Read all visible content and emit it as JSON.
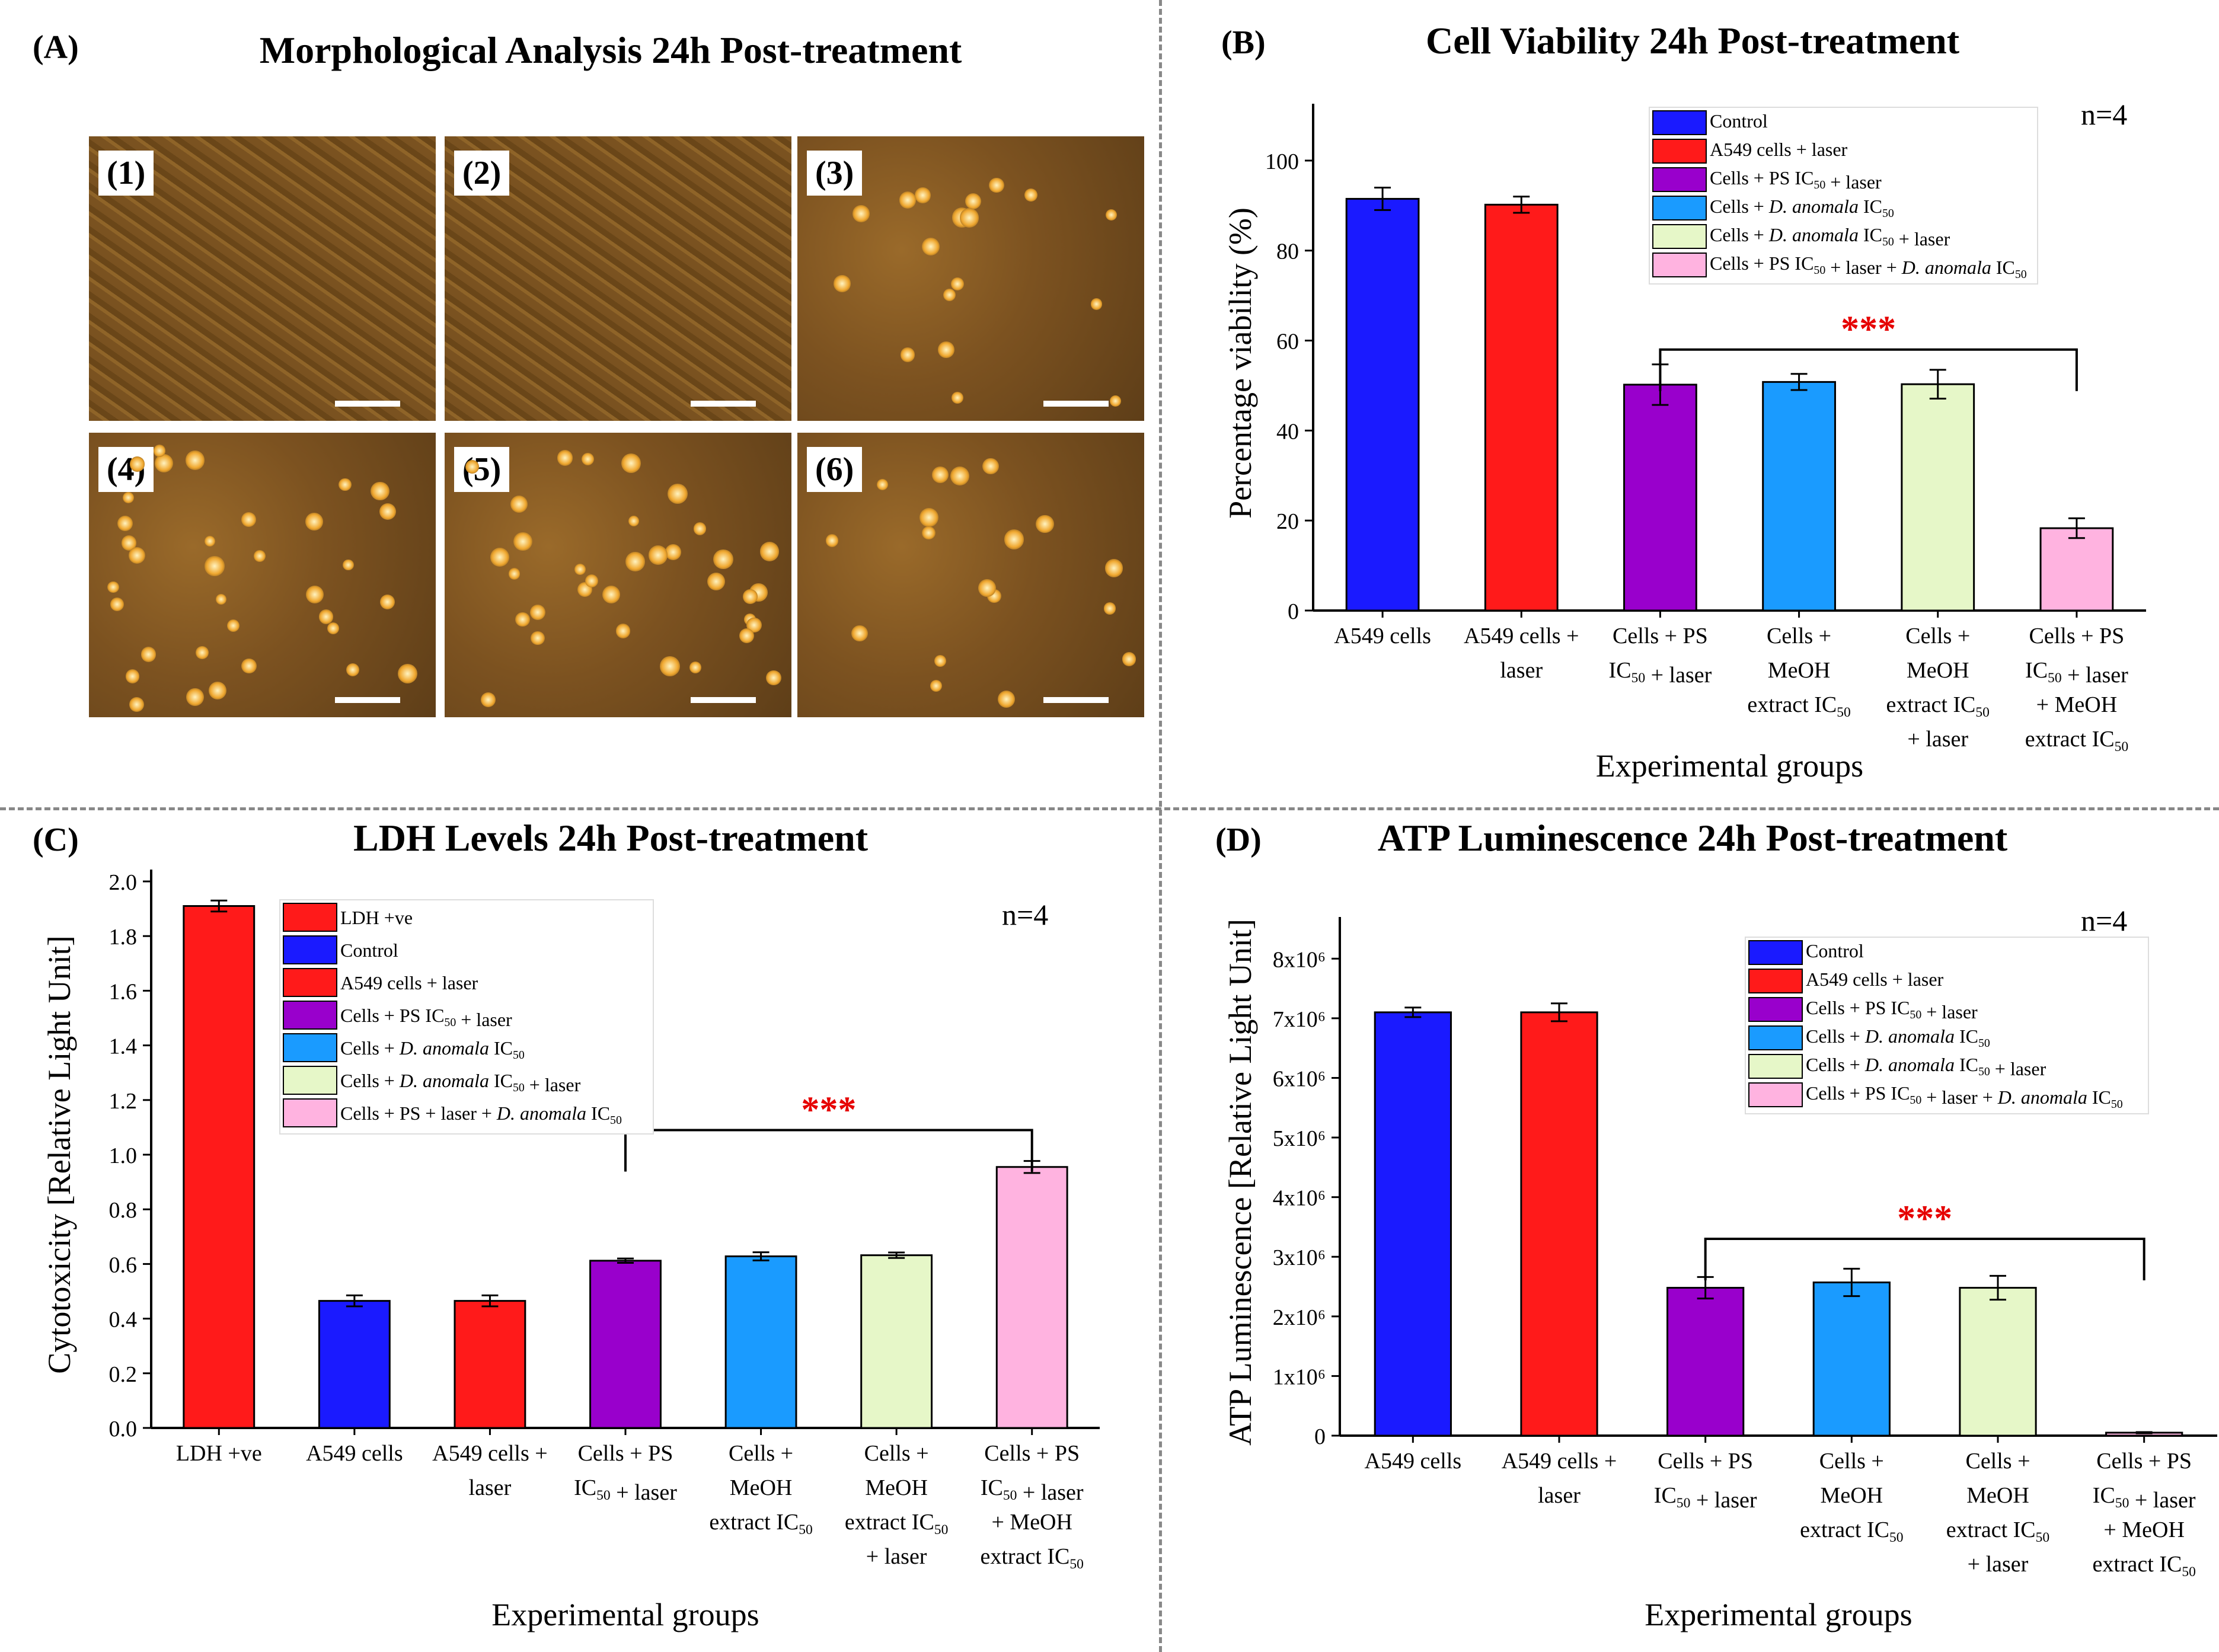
{
  "panel_a": {
    "letter": "(A)",
    "title": "Morphological Analysis 24h Post-treatment",
    "images": [
      {
        "label": "(1)",
        "density": "confluent"
      },
      {
        "label": "(2)",
        "density": "confluent"
      },
      {
        "label": "(3)",
        "density": "sparse"
      },
      {
        "label": "(4)",
        "density": "medium"
      },
      {
        "label": "(5)",
        "density": "medium"
      },
      {
        "label": "(6)",
        "density": "sparse"
      }
    ]
  },
  "colors": {
    "red": "#ff1a1a",
    "blue": "#1a1aff",
    "purple": "#9900cc",
    "cyan": "#1a9bff",
    "lightgreen": "#e6f7c8",
    "pink": "#ffb3e0",
    "significance": "#e60000"
  },
  "chart_data": [
    {
      "panel": "B",
      "letter": "(B)",
      "type": "bar",
      "title": "Cell Viability 24h Post-treatment",
      "xlabel": "Experimental groups",
      "ylabel": "Percentage viability (%)",
      "ylim": [
        0,
        110
      ],
      "yticks": [
        0,
        20,
        40,
        60,
        80,
        100
      ],
      "n_label": "n=4",
      "significance": "***",
      "categories": [
        [
          "A549 cells"
        ],
        [
          "A549 cells +",
          "laser"
        ],
        [
          "Cells + PS",
          "IC50 + laser"
        ],
        [
          "Cells +",
          "MeOH",
          "extract IC50"
        ],
        [
          "Cells +",
          "MeOH",
          "extract IC50",
          "+ laser"
        ],
        [
          "Cells + PS",
          "IC50 + laser",
          "+ MeOH",
          "extract IC50"
        ]
      ],
      "values": [
        91.5,
        90.2,
        50.2,
        50.8,
        50.3,
        18.3
      ],
      "errors": [
        2.5,
        1.8,
        4.5,
        1.8,
        3.2,
        2.2
      ],
      "bar_colors": [
        "blue",
        "red",
        "purple",
        "cyan",
        "lightgreen",
        "pink"
      ],
      "legend": [
        {
          "color": "blue",
          "label": "Control"
        },
        {
          "color": "red",
          "label": "A549 cells + laser"
        },
        {
          "color": "purple",
          "label": "Cells + PS IC50 + laser"
        },
        {
          "color": "cyan",
          "label": "Cells + D. anomala IC50"
        },
        {
          "color": "lightgreen",
          "label": "Cells + D. anomala IC50 + laser"
        },
        {
          "color": "pink",
          "label": "Cells + PS IC50 + laser + D. anomala IC50"
        }
      ],
      "bracket": {
        "from": 2,
        "to": 5
      }
    },
    {
      "panel": "C",
      "letter": "(C)",
      "type": "bar",
      "title": "LDH Levels 24h Post-treatment",
      "xlabel": "Experimental groups",
      "ylabel": "Cytotoxicity [Relative Light Unit]",
      "ylim": [
        0,
        2.0
      ],
      "yticks": [
        0.0,
        0.2,
        0.4,
        0.6,
        0.8,
        1.0,
        1.2,
        1.4,
        1.6,
        1.8,
        2.0
      ],
      "n_label": "n=4",
      "significance": "***",
      "categories": [
        [
          "LDH +ve"
        ],
        [
          "A549 cells"
        ],
        [
          "A549 cells +",
          "laser"
        ],
        [
          "Cells + PS",
          "IC50 + laser"
        ],
        [
          "Cells +",
          "MeOH",
          "extract IC50"
        ],
        [
          "Cells +",
          "MeOH",
          "extract IC50",
          "+ laser"
        ],
        [
          "Cells + PS",
          "IC50 + laser",
          "+ MeOH",
          "extract IC50"
        ]
      ],
      "values": [
        1.91,
        0.465,
        0.465,
        0.612,
        0.628,
        0.632,
        0.955
      ],
      "errors": [
        0.02,
        0.02,
        0.02,
        0.008,
        0.015,
        0.01,
        0.022
      ],
      "bar_colors": [
        "red",
        "blue",
        "red",
        "purple",
        "cyan",
        "lightgreen",
        "pink"
      ],
      "legend": [
        {
          "color": "red",
          "label": "LDH +ve"
        },
        {
          "color": "blue",
          "label": "Control"
        },
        {
          "color": "red",
          "label": "A549 cells + laser"
        },
        {
          "color": "purple",
          "label": "Cells + PS IC50 + laser"
        },
        {
          "color": "cyan",
          "label": "Cells + D. anomala IC50"
        },
        {
          "color": "lightgreen",
          "label": "Cells + D. anomala IC50 + laser"
        },
        {
          "color": "pink",
          "label": "Cells + PS + laser + D. anomala IC50"
        }
      ],
      "bracket": {
        "from": 3,
        "to": 6
      }
    },
    {
      "panel": "D",
      "letter": "(D)",
      "type": "bar",
      "title": "ATP Luminescence 24h Post-treatment",
      "xlabel": "Experimental groups",
      "ylabel": "ATP Luminescence [Relative Light Unit]",
      "ylim": [
        0,
        8500000
      ],
      "yticks": [
        0,
        1000000,
        2000000,
        3000000,
        4000000,
        5000000,
        6000000,
        7000000,
        8000000
      ],
      "ytick_labels": [
        "0",
        "1x10⁶",
        "2x10⁶",
        "3x10⁶",
        "4x10⁶",
        "5x10⁶",
        "6x10⁶",
        "7x10⁶",
        "8x10⁶"
      ],
      "n_label": "n=4",
      "significance": "***",
      "categories": [
        [
          "A549 cells"
        ],
        [
          "A549 cells +",
          "laser"
        ],
        [
          "Cells + PS",
          "IC50 + laser"
        ],
        [
          "Cells +",
          "MeOH",
          "extract IC50"
        ],
        [
          "Cells +",
          "MeOH",
          "extract IC50",
          "+ laser"
        ],
        [
          "Cells + PS",
          "IC50 + laser",
          "+ MeOH",
          "extract IC50"
        ]
      ],
      "values": [
        7100000,
        7100000,
        2480000,
        2570000,
        2480000,
        50000
      ],
      "errors": [
        80000,
        150000,
        180000,
        230000,
        200000,
        10000
      ],
      "bar_colors": [
        "blue",
        "red",
        "purple",
        "cyan",
        "lightgreen",
        "pink"
      ],
      "legend": [
        {
          "color": "blue",
          "label": "Control"
        },
        {
          "color": "red",
          "label": "A549 cells + laser"
        },
        {
          "color": "purple",
          "label": "Cells + PS IC50 + laser"
        },
        {
          "color": "cyan",
          "label": "Cells + D. anomala IC50"
        },
        {
          "color": "lightgreen",
          "label": "Cells + D. anomala IC50 + laser"
        },
        {
          "color": "pink",
          "label": "Cells + PS IC50 + laser + D. anomala IC50"
        }
      ],
      "bracket": {
        "from": 2,
        "to": 5
      }
    }
  ]
}
